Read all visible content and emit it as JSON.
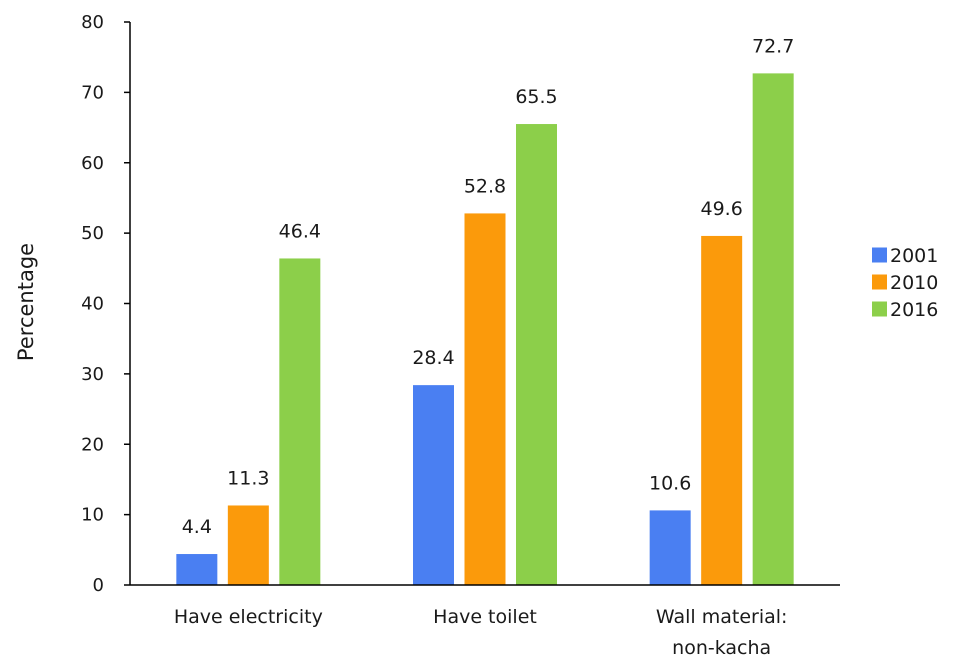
{
  "chart_data": {
    "type": "bar",
    "title": "",
    "xlabel": "",
    "ylabel": "Percentage",
    "ylim": [
      0,
      80
    ],
    "yticks": [
      0,
      10,
      20,
      30,
      40,
      50,
      60,
      70,
      80
    ],
    "grid": false,
    "legend_position": "right",
    "categories": [
      [
        "Have electricity"
      ],
      [
        "Have toilet"
      ],
      [
        "Wall material:",
        "non-kacha"
      ]
    ],
    "series": [
      {
        "name": "2001",
        "color": "#4a7ff2",
        "values": [
          4.4,
          28.4,
          10.6
        ]
      },
      {
        "name": "2010",
        "color": "#fb9a0b",
        "values": [
          11.3,
          52.8,
          49.6
        ]
      },
      {
        "name": "2016",
        "color": "#8ccf4a",
        "values": [
          46.4,
          65.5,
          72.7
        ]
      }
    ]
  }
}
